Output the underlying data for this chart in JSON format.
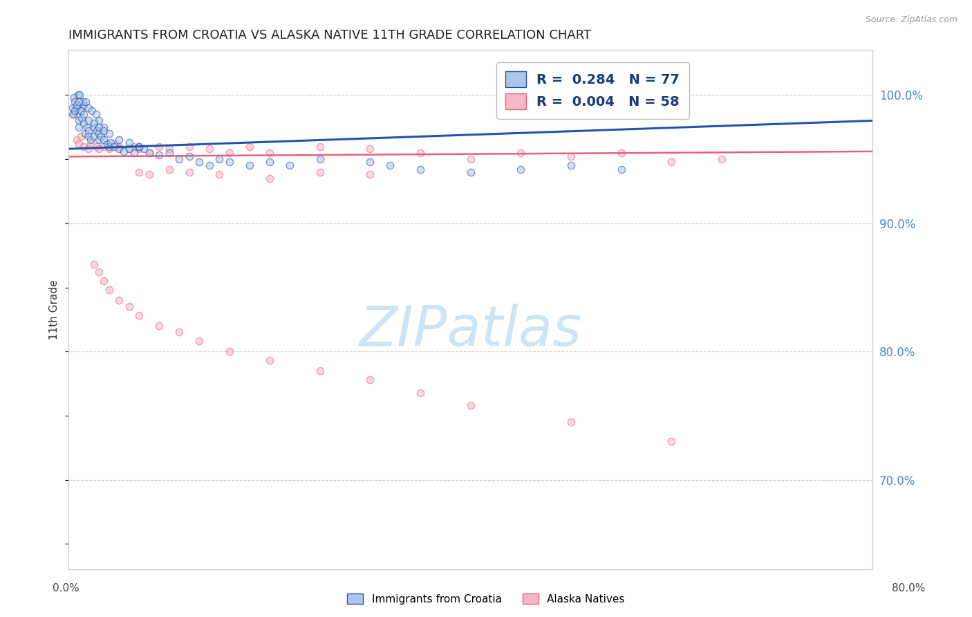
{
  "title": "IMMIGRANTS FROM CROATIA VS ALASKA NATIVE 11TH GRADE CORRELATION CHART",
  "source": "Source: ZipAtlas.com",
  "ylabel": "11th Grade",
  "legend1_label": "R =  0.284   N = 77",
  "legend2_label": "R =  0.004   N = 58",
  "legend1_facecolor": "#aec6e8",
  "legend2_facecolor": "#f5b8c8",
  "blue_line_color": "#2255aa",
  "pink_line_color": "#e8607a",
  "watermark": "ZIPatlas",
  "watermark_color": "#cce4f7",
  "xlim": [
    0.0,
    0.008
  ],
  "ylim": [
    0.63,
    1.035
  ],
  "background_color": "#ffffff",
  "grid_color": "#cccccc",
  "title_color": "#222222",
  "right_tick_color": "#4488cc",
  "scatter_size": 55,
  "scatter_alpha": 0.55,
  "scatter_lw": 1.0,
  "blue_scatter_x": [
    5e-05,
    8e-05,
    0.0001,
    0.0001,
    0.00012,
    0.00013,
    0.00015,
    0.00015,
    0.00016,
    0.00018,
    0.0002,
    0.0002,
    0.00022,
    0.00025,
    0.00025,
    0.00028,
    0.0003,
    0.0003,
    0.00032,
    0.00035,
    0.00038,
    0.0004,
    0.00042,
    0.00045,
    0.0005,
    0.00055,
    0.0006,
    0.00065,
    0.0007,
    0.00075,
    0.0008,
    0.0009,
    0.001,
    0.0011,
    0.0012,
    0.0013,
    0.0014,
    0.0015,
    0.0016,
    0.0018,
    0.002,
    0.0022,
    0.0025,
    0.003,
    0.0032,
    0.0035,
    0.004,
    0.0045,
    0.005,
    0.0055,
    5e-05,
    6e-05,
    7e-05,
    9e-05,
    0.00011,
    0.00014,
    0.00017,
    0.0002,
    0.00023,
    0.00027,
    0.0003,
    0.00035,
    4e-05,
    4e-05,
    6e-05,
    8e-05,
    0.0001,
    0.00012,
    0.00015,
    0.0002,
    0.00025,
    0.0003,
    0.00035,
    0.0004,
    0.0005,
    0.0006,
    0.0007
  ],
  "blue_scatter_y": [
    0.985,
    0.99,
    0.975,
    0.98,
    0.988,
    0.982,
    0.992,
    0.978,
    0.97,
    0.975,
    0.972,
    0.968,
    0.965,
    0.975,
    0.968,
    0.972,
    0.97,
    0.965,
    0.968,
    0.965,
    0.962,
    0.96,
    0.963,
    0.96,
    0.958,
    0.956,
    0.958,
    0.955,
    0.96,
    0.958,
    0.955,
    0.953,
    0.955,
    0.95,
    0.952,
    0.948,
    0.945,
    0.95,
    0.948,
    0.945,
    0.948,
    0.945,
    0.95,
    0.948,
    0.945,
    0.942,
    0.94,
    0.942,
    0.945,
    0.942,
    0.998,
    0.995,
    0.99,
    1.0,
    1.0,
    0.995,
    0.995,
    0.99,
    0.988,
    0.985,
    0.98,
    0.975,
    0.985,
    0.99,
    0.988,
    0.992,
    0.995,
    0.988,
    0.985,
    0.98,
    0.978,
    0.975,
    0.972,
    0.97,
    0.965,
    0.963,
    0.96
  ],
  "pink_scatter_x": [
    8e-05,
    0.0001,
    0.00012,
    0.00015,
    0.0002,
    0.00022,
    0.00028,
    0.0003,
    0.00035,
    0.0004,
    0.00045,
    0.0005,
    0.0006,
    0.00065,
    0.0007,
    0.0008,
    0.0009,
    0.001,
    0.0012,
    0.0014,
    0.0016,
    0.0018,
    0.002,
    0.0025,
    0.003,
    0.0035,
    0.004,
    0.0045,
    0.005,
    0.0055,
    0.006,
    0.0065,
    0.0007,
    0.0008,
    0.001,
    0.0012,
    0.0015,
    0.002,
    0.0025,
    0.003,
    0.00025,
    0.0003,
    0.00035,
    0.0004,
    0.0005,
    0.0006,
    0.0007,
    0.0009,
    0.0011,
    0.0013,
    0.0016,
    0.002,
    0.0025,
    0.003,
    0.0035,
    0.004,
    0.005,
    0.006
  ],
  "pink_scatter_y": [
    0.965,
    0.962,
    0.968,
    0.96,
    0.958,
    0.962,
    0.96,
    0.958,
    0.96,
    0.958,
    0.962,
    0.96,
    0.958,
    0.96,
    0.958,
    0.955,
    0.96,
    0.958,
    0.96,
    0.958,
    0.955,
    0.96,
    0.955,
    0.96,
    0.958,
    0.955,
    0.95,
    0.955,
    0.952,
    0.955,
    0.948,
    0.95,
    0.94,
    0.938,
    0.942,
    0.94,
    0.938,
    0.935,
    0.94,
    0.938,
    0.868,
    0.862,
    0.855,
    0.848,
    0.84,
    0.835,
    0.828,
    0.82,
    0.815,
    0.808,
    0.8,
    0.793,
    0.785,
    0.778,
    0.768,
    0.758,
    0.745,
    0.73
  ],
  "blue_trend_x0": 0.0,
  "blue_trend_x1": 0.008,
  "blue_trend_y0": 0.958,
  "blue_trend_y1": 0.98,
  "pink_trend_y0": 0.952,
  "pink_trend_y1": 0.956,
  "yticks": [
    0.7,
    0.8,
    0.9,
    1.0
  ],
  "ytick_labels": [
    "70.0%",
    "80.0%",
    "90.0%",
    "100.0%"
  ],
  "xtick_left_label": "0.0%",
  "xtick_right_label": "80.0%",
  "bottom_legend_labels": [
    "Immigrants from Croatia",
    "Alaska Natives"
  ]
}
